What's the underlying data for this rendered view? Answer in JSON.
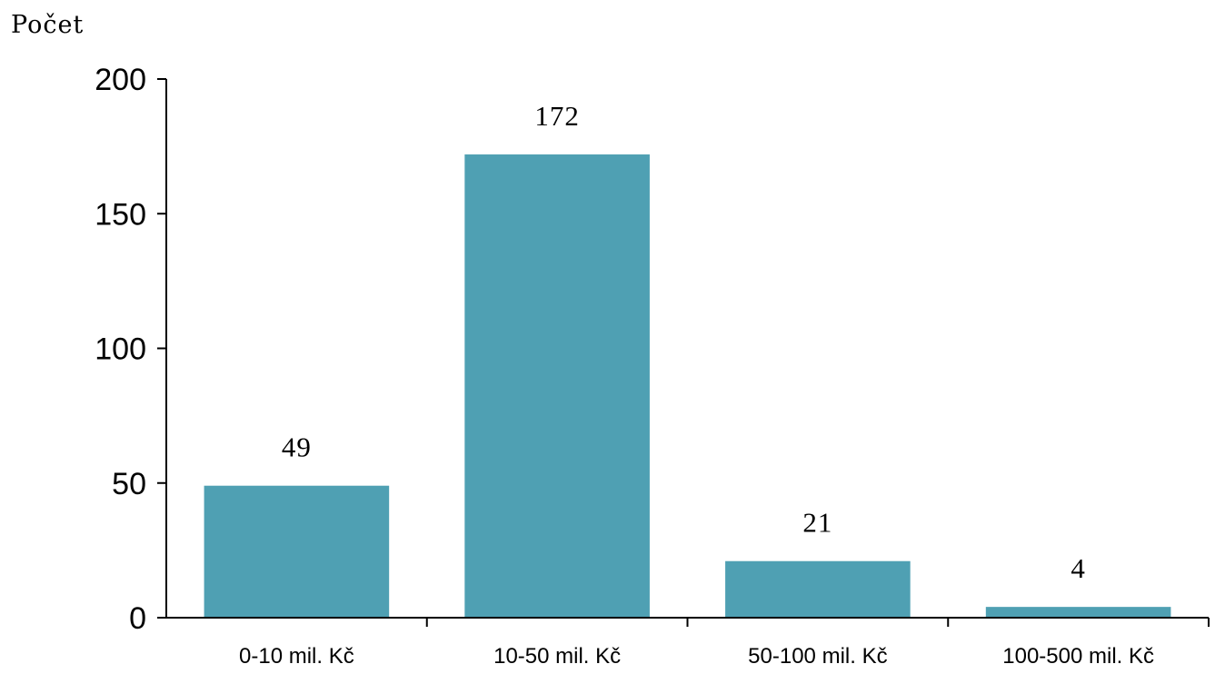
{
  "chart_data": {
    "type": "bar",
    "title": "",
    "ylabel": "Počet",
    "xlabel": "",
    "categories": [
      "0-10 mil. Kč",
      "10-50 mil. Kč",
      "50-100 mil. Kč",
      "100-500 mil. Kč"
    ],
    "values": [
      49,
      172,
      21,
      4
    ],
    "data_labels": [
      "49",
      "172",
      "21",
      "4"
    ],
    "ylim": [
      0,
      200
    ],
    "yticks": [
      0,
      50,
      100,
      150,
      200
    ],
    "ytick_labels": [
      "0",
      "50",
      "100",
      "150",
      "200"
    ],
    "grid": false,
    "legend": "none",
    "bar_color": "#4fa0b3"
  }
}
